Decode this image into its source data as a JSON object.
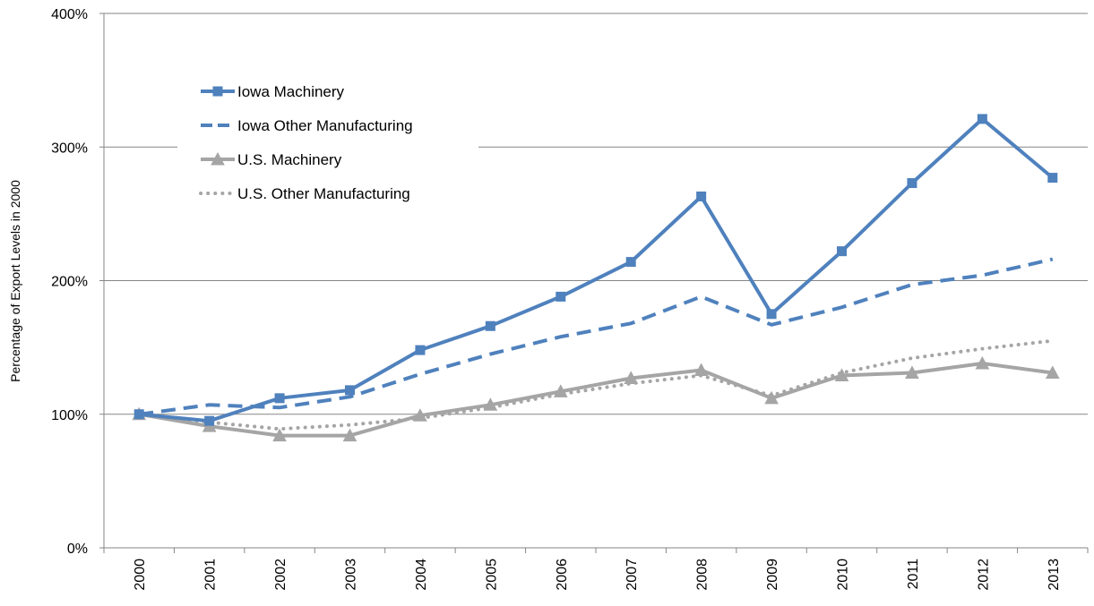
{
  "chart_data": {
    "type": "line",
    "title": "",
    "xlabel": "",
    "ylabel": "Percentage of Export Levels in 2000",
    "ylim": [
      0,
      400
    ],
    "yticks": [
      0,
      100,
      200,
      300,
      400
    ],
    "ytick_labels": [
      "0%",
      "100%",
      "200%",
      "300%",
      "400%"
    ],
    "grid": "horizontal",
    "legend_position": "upper-left inside plot",
    "categories": [
      "2000",
      "2001",
      "2002",
      "2003",
      "2004",
      "2005",
      "2006",
      "2007",
      "2008",
      "2009",
      "2010",
      "2011",
      "2012",
      "2013"
    ],
    "series": [
      {
        "name": "Iowa Machinery",
        "color": "#4f81bd",
        "line_style": "solid",
        "marker": "square",
        "values": [
          100,
          95,
          112,
          118,
          148,
          166,
          188,
          214,
          263,
          175,
          222,
          273,
          321,
          277
        ]
      },
      {
        "name": "Iowa Other Manufacturing",
        "color": "#4f81bd",
        "line_style": "dashed",
        "marker": "none",
        "values": [
          100,
          107,
          105,
          113,
          130,
          145,
          158,
          168,
          188,
          167,
          180,
          197,
          204,
          216
        ]
      },
      {
        "name": "U.S. Machinery",
        "color": "#a5a5a5",
        "line_style": "solid",
        "marker": "triangle",
        "values": [
          100,
          91,
          84,
          84,
          99,
          107,
          117,
          127,
          133,
          112,
          129,
          131,
          138,
          131
        ]
      },
      {
        "name": "U.S. Other Manufacturing",
        "color": "#a5a5a5",
        "line_style": "dotted",
        "marker": "none",
        "values": [
          100,
          94,
          89,
          92,
          97,
          105,
          115,
          123,
          129,
          114,
          131,
          142,
          149,
          155
        ]
      }
    ]
  }
}
